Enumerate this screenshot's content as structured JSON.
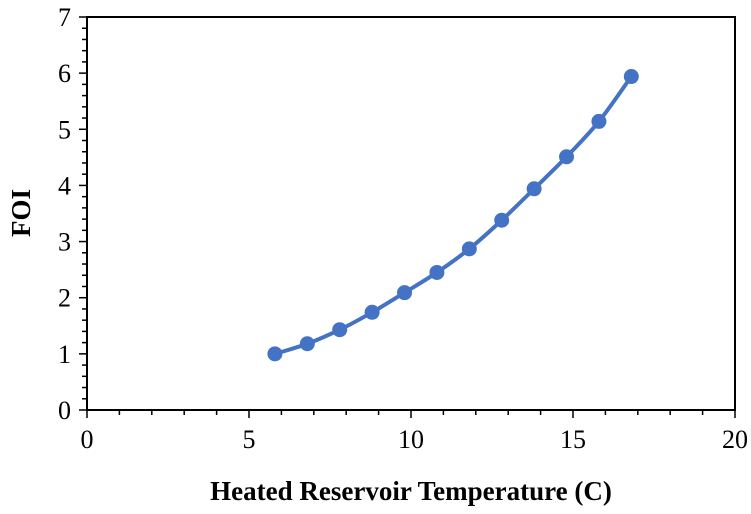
{
  "chart_data": {
    "type": "line",
    "title": "",
    "xlabel": "Heated Reservoir Temperature (C)",
    "ylabel": "FOI",
    "xlim": [
      0,
      20
    ],
    "ylim": [
      0,
      7
    ],
    "xticks": [
      0,
      5,
      10,
      15,
      20
    ],
    "yticks": [
      0,
      1,
      2,
      3,
      4,
      5,
      6,
      7
    ],
    "grid": false,
    "legend": "none",
    "series": [
      {
        "name": "FOI",
        "color": "#4472C4",
        "marker": "circle",
        "x": [
          5.8,
          6.8,
          7.8,
          8.8,
          9.8,
          10.8,
          11.8,
          12.8,
          13.8,
          14.8,
          15.8,
          16.8
        ],
        "y": [
          1.0,
          1.18,
          1.43,
          1.74,
          2.09,
          2.45,
          2.87,
          3.38,
          3.94,
          4.51,
          5.14,
          5.94
        ]
      }
    ]
  }
}
